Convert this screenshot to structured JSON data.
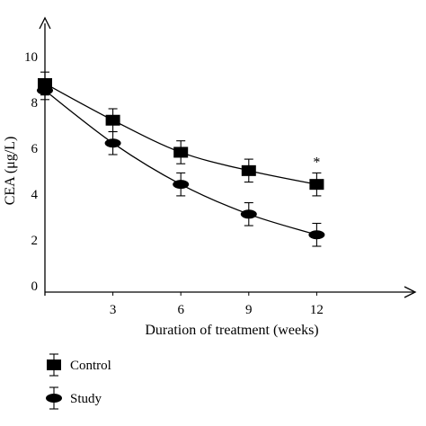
{
  "chart_data": {
    "type": "line",
    "xlabel": "Duration of treatment (weeks)",
    "ylabel": "CEA (μg/L)",
    "x": [
      0,
      3,
      6,
      9,
      12
    ],
    "x_ticks": [
      "3",
      "6",
      "9",
      "12"
    ],
    "y_ticks": [
      "0",
      "2",
      "4",
      "6",
      "8",
      "10"
    ],
    "xlim": [
      0,
      16.3
    ],
    "ylim": [
      0,
      11.2
    ],
    "grid": false,
    "legend_position": "bottom-left",
    "series": [
      {
        "name": "Control",
        "marker": "square",
        "values": [
          9.1,
          7.5,
          6.1,
          5.3,
          4.7
        ],
        "error": [
          0.5,
          0.5,
          0.5,
          0.5,
          0.5
        ]
      },
      {
        "name": "Study",
        "marker": "ellipse",
        "values": [
          8.8,
          6.5,
          4.7,
          3.4,
          2.5
        ],
        "error": [
          0.4,
          0.5,
          0.5,
          0.5,
          0.5
        ]
      }
    ],
    "annotations": [
      {
        "text": "*",
        "x": 12,
        "y": 5.7
      }
    ]
  }
}
